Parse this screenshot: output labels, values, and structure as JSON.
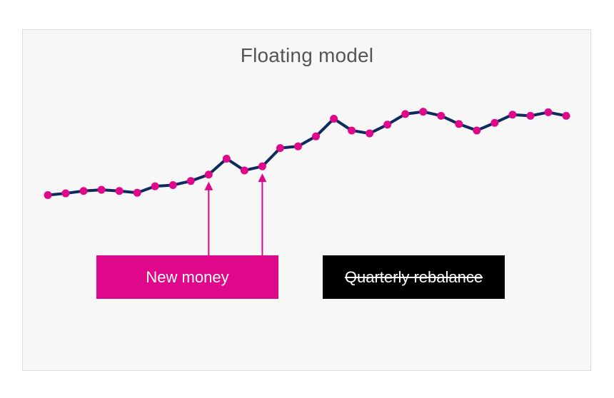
{
  "title": "Floating model",
  "colors": {
    "line": "#0f2a5c",
    "marker": "#e0088a",
    "new_money_bg": "#e0088a",
    "quarterly_bg": "#000000"
  },
  "labels": {
    "new_money": "New money",
    "quarterly_rebalance": "Quarterly rebalance"
  },
  "chart_data": {
    "type": "line",
    "title": "Floating model",
    "xlabel": "",
    "ylabel": "",
    "grid": false,
    "x": [
      1,
      2,
      3,
      4,
      5,
      6,
      7,
      8,
      9,
      10,
      11,
      12,
      13,
      14,
      15,
      16,
      17,
      18,
      19,
      20,
      21,
      22,
      23,
      24,
      25,
      26,
      27,
      28,
      29,
      30
    ],
    "series": [
      {
        "values": [
          20,
          23,
          27,
          29,
          27,
          24,
          35,
          37,
          44,
          55,
          82,
          62,
          69,
          100,
          103,
          120,
          150,
          130,
          125,
          140,
          158,
          162,
          155,
          141,
          130,
          143,
          157,
          155,
          161,
          155
        ]
      }
    ],
    "ylim": [
      0,
      170
    ],
    "annotations": [
      {
        "text": "New money",
        "arrows_at_x": [
          10,
          13
        ]
      },
      {
        "text": "Quarterly rebalance",
        "strikethrough": true
      }
    ]
  }
}
